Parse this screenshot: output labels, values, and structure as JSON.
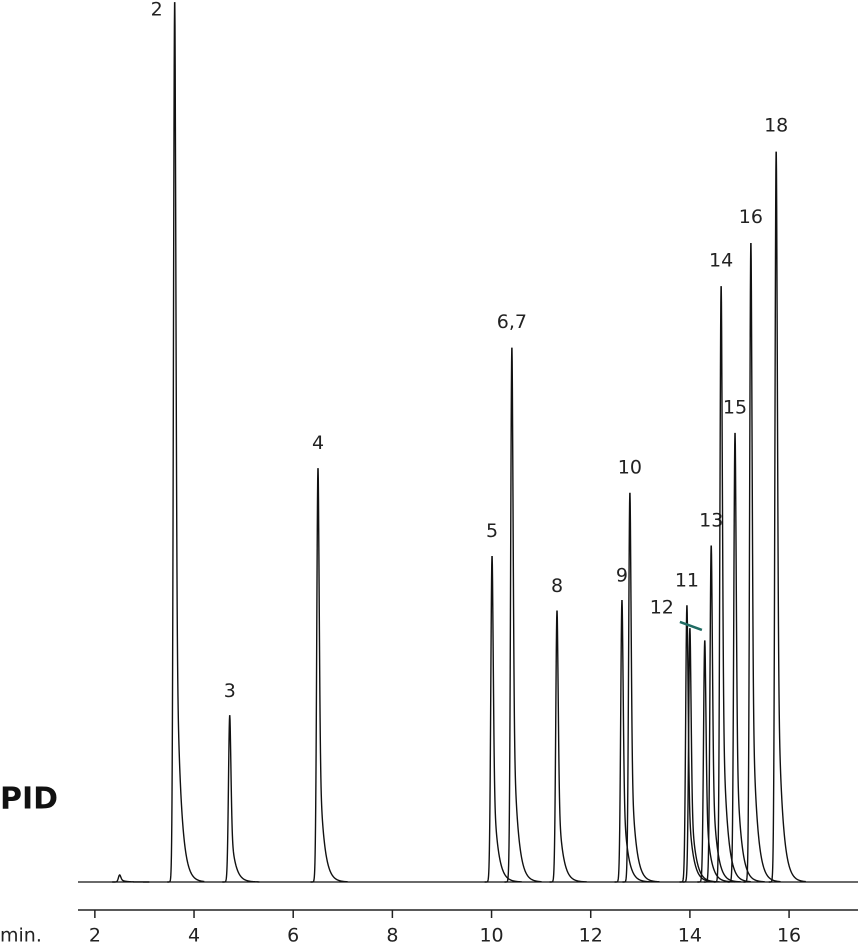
{
  "chart_data": {
    "type": "chromatogram",
    "detector": "PID",
    "xlabel": "min.",
    "xlim": [
      1.66,
      17.39
    ],
    "xticks": [
      2,
      4,
      6,
      8,
      10,
      12,
      14,
      16
    ],
    "ylim": [
      0,
      100
    ],
    "color": "#111111",
    "peaks": {
      "labels": [
        null,
        "2",
        "3",
        "4",
        "5",
        "6,7",
        "8",
        "9",
        "10",
        "11",
        "12",
        null,
        "13",
        "14",
        "15",
        "16",
        "18"
      ],
      "x": [
        2.5,
        3.61,
        4.72,
        6.5,
        10.01,
        10.41,
        11.32,
        12.63,
        12.79,
        13.94,
        14.0,
        14.3,
        14.43,
        14.63,
        14.91,
        15.23,
        15.74
      ],
      "values": [
        0.8,
        100,
        18.9,
        47,
        37,
        60.7,
        30.8,
        32,
        44.2,
        31.4,
        28.8,
        27.4,
        38.2,
        67.7,
        51,
        72.6,
        83
      ]
    }
  }
}
